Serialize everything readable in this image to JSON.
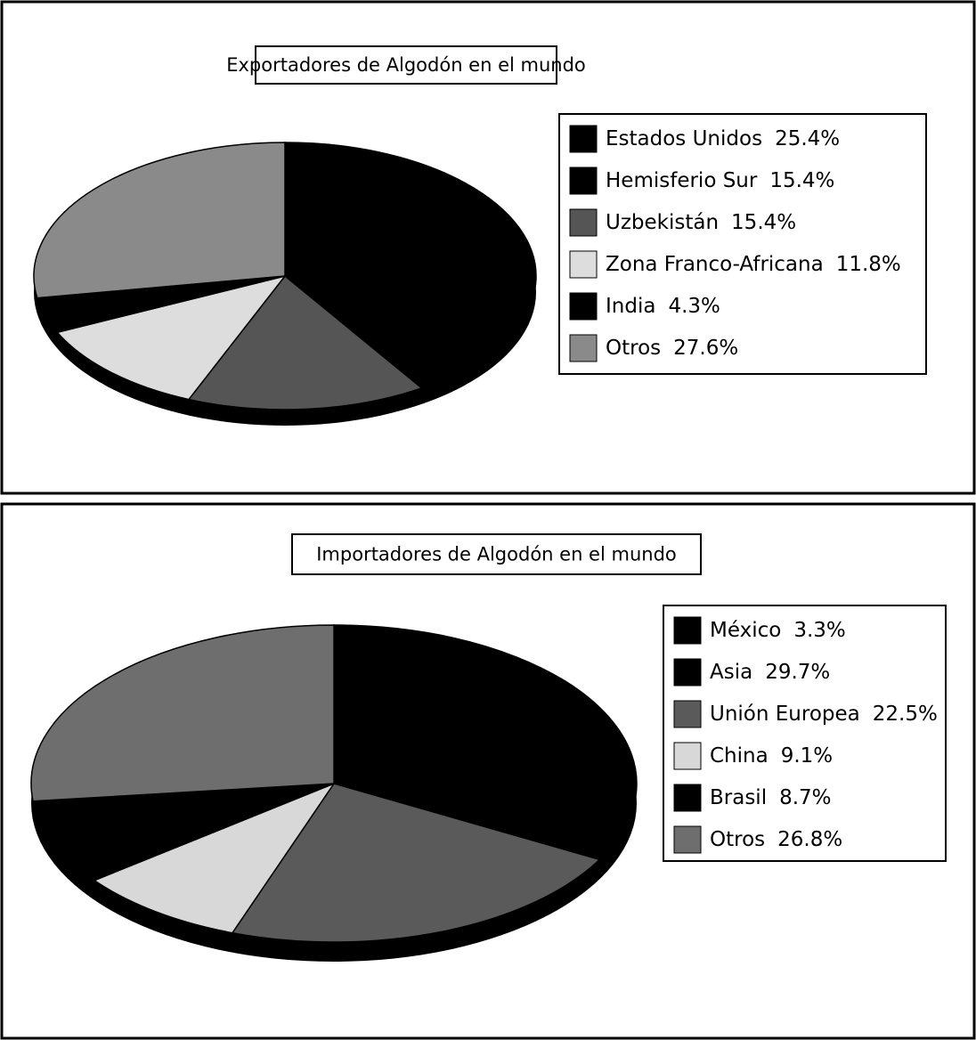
{
  "chart_data": [
    {
      "type": "pie",
      "title": "Exportadores de Algodón en el mundo",
      "categories": [
        "Estados Unidos",
        "Hemisferio Sur",
        "Uzbekistán",
        "Zona Franco-Africana",
        "India",
        "Otros"
      ],
      "values": [
        25.4,
        15.4,
        15.4,
        11.8,
        4.3,
        27.6
      ],
      "value_labels": [
        "25.4%",
        "15.4%",
        "15.4%",
        "11.8%",
        "4.3%",
        "27.6%"
      ],
      "colors": [
        "#000000",
        "#000000",
        "#555555",
        "#dddddd",
        "#000000",
        "#8a8a8a"
      ]
    },
    {
      "type": "pie",
      "title": "Importadores de Algodón en el mundo",
      "categories": [
        "México",
        "Asia",
        "Unión Europea",
        "China",
        "Brasil",
        "Otros"
      ],
      "values": [
        3.3,
        29.7,
        22.5,
        9.1,
        8.7,
        26.8
      ],
      "value_labels": [
        "3.3%",
        "29.7%",
        "22.5%",
        "9.1%",
        "8.7%",
        "26.8%"
      ],
      "colors": [
        "#000000",
        "#000000",
        "#5a5a5a",
        "#d8d8d8",
        "#000000",
        "#6e6e6e"
      ]
    }
  ]
}
